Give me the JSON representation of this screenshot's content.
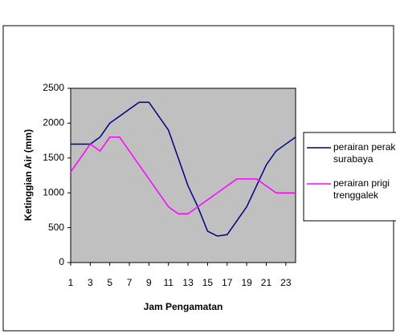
{
  "chart_data": {
    "type": "line",
    "xlabel": "Jam Pengamatan",
    "ylabel": "Ketinggian Air (mm)",
    "x": [
      1,
      2,
      3,
      4,
      5,
      6,
      7,
      8,
      9,
      10,
      11,
      12,
      13,
      14,
      15,
      16,
      17,
      18,
      19,
      20,
      21,
      22,
      23,
      24
    ],
    "series": [
      {
        "name": "perairan perak surabaya",
        "color": "#000080",
        "values": [
          1700,
          1700,
          1700,
          1800,
          2000,
          2100,
          2200,
          2300,
          2300,
          2100,
          1900,
          1500,
          1100,
          800,
          450,
          380,
          400,
          600,
          800,
          1100,
          1400,
          1600,
          1700,
          1800
        ]
      },
      {
        "name": "perairan prigi trenggalek",
        "color": "#ff00ff",
        "values": [
          1300,
          1500,
          1700,
          1600,
          1800,
          1800,
          1600,
          1400,
          1200,
          1000,
          800,
          700,
          700,
          800,
          900,
          1000,
          1100,
          1200,
          1200,
          1200,
          1100,
          1000,
          1000,
          1000
        ]
      }
    ],
    "xlim": [
      1,
      24
    ],
    "xticks": [
      1,
      3,
      5,
      7,
      9,
      11,
      13,
      15,
      17,
      19,
      21,
      23
    ],
    "ylim": [
      0,
      2500
    ],
    "yticks": [
      0,
      500,
      1000,
      1500,
      2000,
      2500
    ],
    "grid": false,
    "plot_background": "#c0c0c0",
    "legend": "right"
  }
}
